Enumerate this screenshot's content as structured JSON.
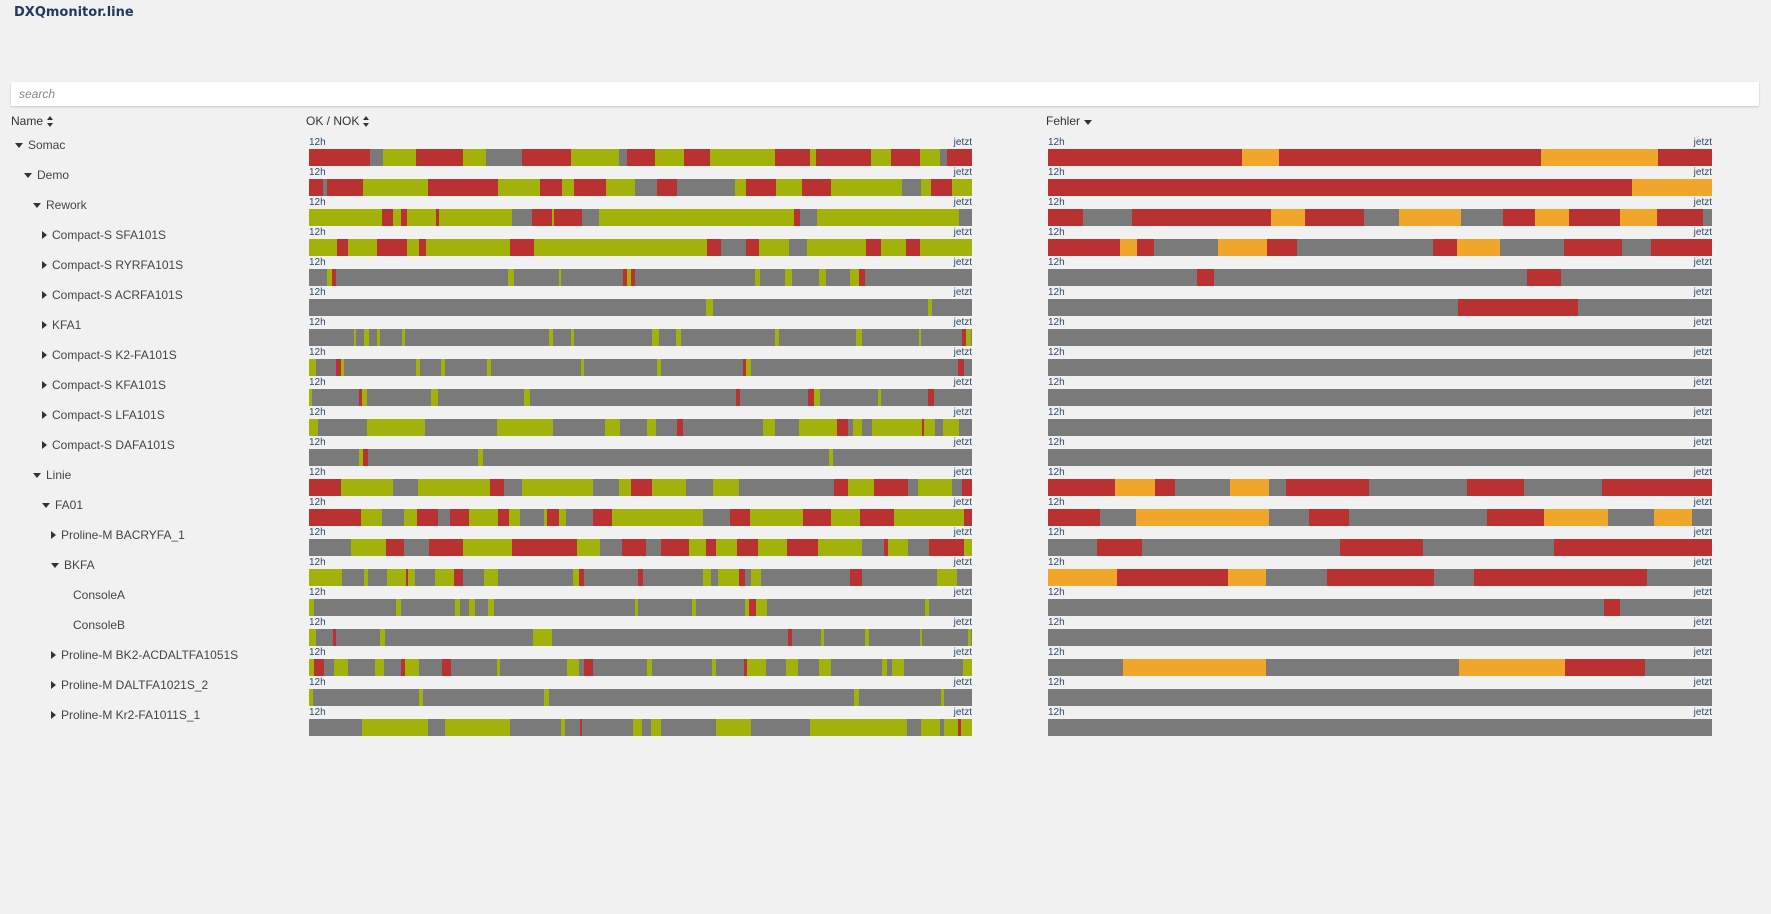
{
  "app": {
    "title": "DXQmonitor.line"
  },
  "search": {
    "placeholder": "search"
  },
  "columns": {
    "name": "Name",
    "oknok": "OK / NOK",
    "errors": "Fehler"
  },
  "timeline": {
    "start_label": "12h",
    "end_label": "jetzt"
  },
  "colors": {
    "ok": "#a3b20a",
    "nok": "#b93131",
    "idle": "#7a7a7a",
    "warn": "#f0a62a"
  },
  "rows": [
    {
      "label": "Somac",
      "depth": 0,
      "expander": "expanded",
      "ok_mix": "mixed",
      "err_mix": "err-heavy"
    },
    {
      "label": "Demo",
      "depth": 1,
      "expander": "expanded",
      "ok_mix": "mixed",
      "err_mix": "err-heavy"
    },
    {
      "label": "Rework",
      "depth": 2,
      "expander": "expanded",
      "ok_mix": "ok-heavy",
      "err_mix": "err-mid"
    },
    {
      "label": "Compact-S SFA101S",
      "depth": 3,
      "expander": "collapsed",
      "ok_mix": "ok-heavy",
      "err_mix": "err-mid"
    },
    {
      "label": "Compact-S RYRFA101S",
      "depth": 3,
      "expander": "collapsed",
      "ok_mix": "idle",
      "err_mix": "err-few"
    },
    {
      "label": "Compact-S ACRFA101S",
      "depth": 3,
      "expander": "collapsed",
      "ok_mix": "idle",
      "err_mix": "err-one"
    },
    {
      "label": "KFA1",
      "depth": 3,
      "expander": "collapsed",
      "ok_mix": "idle",
      "err_mix": "none"
    },
    {
      "label": "Compact-S K2-FA101S",
      "depth": 3,
      "expander": "collapsed",
      "ok_mix": "idle",
      "err_mix": "none"
    },
    {
      "label": "Compact-S KFA101S",
      "depth": 3,
      "expander": "collapsed",
      "ok_mix": "idle",
      "err_mix": "none"
    },
    {
      "label": "Compact-S LFA101S",
      "depth": 3,
      "expander": "collapsed",
      "ok_mix": "idle-ok",
      "err_mix": "none"
    },
    {
      "label": "Compact-S DAFA101S",
      "depth": 3,
      "expander": "collapsed",
      "ok_mix": "idle-sparse",
      "err_mix": "none"
    },
    {
      "label": "Linie",
      "depth": 2,
      "expander": "expanded",
      "ok_mix": "mixed",
      "err_mix": "err-warn"
    },
    {
      "label": "FA01",
      "depth": 3,
      "expander": "expanded",
      "ok_mix": "mixed",
      "err_mix": "err-warn"
    },
    {
      "label": "Proline-M BACRYFA_1",
      "depth": 4,
      "expander": "collapsed",
      "ok_mix": "mixed",
      "err_mix": "err-scatter"
    },
    {
      "label": "BKFA",
      "depth": 4,
      "expander": "expanded",
      "ok_mix": "idle-ok",
      "err_mix": "err-warn2"
    },
    {
      "label": "ConsoleA",
      "depth": 5,
      "expander": "none",
      "ok_mix": "idle",
      "err_mix": "err-few"
    },
    {
      "label": "ConsoleB",
      "depth": 5,
      "expander": "none",
      "ok_mix": "idle",
      "err_mix": "none"
    },
    {
      "label": "Proline-M BK2-ACDALTFA1051S",
      "depth": 4,
      "expander": "collapsed",
      "ok_mix": "idle-ok",
      "err_mix": "err-warn3"
    },
    {
      "label": "Proline-M DALTFA1021S_2",
      "depth": 4,
      "expander": "collapsed",
      "ok_mix": "idle-sparse",
      "err_mix": "none"
    },
    {
      "label": "Proline-M Kr2-FA1011S_1",
      "depth": 4,
      "expander": "collapsed",
      "ok_mix": "ok-idle",
      "err_mix": "none"
    }
  ]
}
